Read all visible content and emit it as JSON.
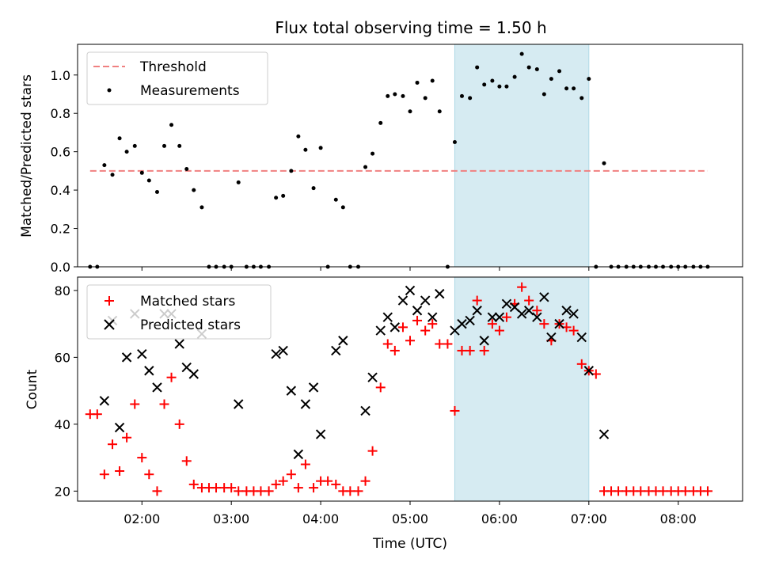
{
  "title": "Flux total observing time = 1.50 h",
  "colors": {
    "threshold": "#f08080",
    "measurement": "#000000",
    "matched": "#ff0000",
    "predicted": "#000000",
    "shade": "#add8e6"
  },
  "chart_data": [
    {
      "type": "scatter",
      "ylabel": "Matched/Predicted stars",
      "ylim": [
        0,
        1.16
      ],
      "yticks": [
        "0.0",
        "0.2",
        "0.4",
        "0.6",
        "0.8",
        "1.0"
      ],
      "xlim_hours": [
        1.28,
        8.72
      ],
      "shaded_span_hours": [
        5.5,
        7.0
      ],
      "legend": {
        "position": "top-left",
        "entries": [
          "Threshold",
          "Measurements"
        ]
      },
      "threshold": {
        "name": "Threshold",
        "value": 0.5,
        "x_range_hours": [
          1.42,
          8.33
        ]
      },
      "series": [
        {
          "name": "Measurements",
          "marker": "dot",
          "x": [
            1.42,
            1.5,
            1.58,
            1.67,
            1.75,
            1.83,
            1.92,
            2.0,
            2.08,
            2.17,
            2.25,
            2.33,
            2.42,
            2.5,
            2.58,
            2.67,
            2.75,
            2.83,
            2.92,
            3.0,
            3.08,
            3.17,
            3.25,
            3.33,
            3.42,
            3.5,
            3.58,
            3.67,
            3.75,
            3.83,
            3.92,
            4.0,
            4.08,
            4.17,
            4.25,
            4.33,
            4.42,
            4.5,
            4.58,
            4.67,
            4.75,
            4.83,
            4.92,
            5.0,
            5.08,
            5.17,
            5.25,
            5.33,
            5.42,
            5.5,
            5.58,
            5.67,
            5.75,
            5.83,
            5.92,
            6.0,
            6.08,
            6.17,
            6.25,
            6.33,
            6.42,
            6.5,
            6.58,
            6.67,
            6.75,
            6.83,
            6.92,
            7.0,
            7.08,
            7.17,
            7.25,
            7.33,
            7.42,
            7.5,
            7.58,
            7.67,
            7.75,
            7.83,
            7.92,
            8.0,
            8.08,
            8.17,
            8.25,
            8.33
          ],
          "y": [
            0,
            0,
            0.53,
            0.48,
            0.67,
            0.6,
            0.63,
            0.49,
            0.45,
            0.39,
            0.63,
            0.74,
            0.63,
            0.51,
            0.4,
            0.31,
            0,
            0,
            0,
            0,
            0.44,
            0,
            0,
            0,
            0,
            0.36,
            0.37,
            0.5,
            0.68,
            0.61,
            0.41,
            0.62,
            0,
            0.35,
            0.31,
            0,
            0,
            0.52,
            0.59,
            0.75,
            0.89,
            0.9,
            0.89,
            0.81,
            0.96,
            0.88,
            0.97,
            0.81,
            0,
            0.65,
            0.89,
            0.88,
            1.04,
            0.95,
            0.97,
            0.94,
            0.94,
            0.99,
            1.11,
            1.04,
            1.03,
            0.9,
            0.98,
            1.02,
            0.93,
            0.93,
            0.88,
            0.98,
            0,
            0.54,
            0,
            0,
            0,
            0,
            0,
            0,
            0,
            0,
            0,
            0,
            0,
            0,
            0,
            0
          ]
        }
      ]
    },
    {
      "type": "scatter",
      "ylabel": "Count",
      "xlabel": "Time (UTC)",
      "ylim": [
        17,
        84
      ],
      "yticks": [
        "20",
        "40",
        "60",
        "80"
      ],
      "xlim_hours": [
        1.28,
        8.72
      ],
      "xticks": [
        "02:00",
        "03:00",
        "04:00",
        "05:00",
        "06:00",
        "07:00",
        "08:00"
      ],
      "shaded_span_hours": [
        5.5,
        7.0
      ],
      "legend": {
        "position": "top-left",
        "entries": [
          "Matched stars",
          "Predicted stars"
        ]
      },
      "series": [
        {
          "name": "Matched stars",
          "marker": "plus",
          "x": [
            1.42,
            1.5,
            1.58,
            1.67,
            1.75,
            1.83,
            1.92,
            2.0,
            2.08,
            2.17,
            2.25,
            2.33,
            2.42,
            2.5,
            2.58,
            2.67,
            2.75,
            2.83,
            2.92,
            3.0,
            3.08,
            3.17,
            3.25,
            3.33,
            3.42,
            3.5,
            3.58,
            3.67,
            3.75,
            3.83,
            3.92,
            4.0,
            4.08,
            4.17,
            4.25,
            4.33,
            4.42,
            4.5,
            4.58,
            4.67,
            4.75,
            4.83,
            4.92,
            5.0,
            5.08,
            5.17,
            5.25,
            5.33,
            5.42,
            5.5,
            5.58,
            5.67,
            5.75,
            5.83,
            5.92,
            6.0,
            6.08,
            6.17,
            6.25,
            6.33,
            6.42,
            6.5,
            6.58,
            6.67,
            6.75,
            6.83,
            6.92,
            7.0,
            7.08,
            7.17,
            7.25,
            7.33,
            7.42,
            7.5,
            7.58,
            7.67,
            7.75,
            7.83,
            7.92,
            8.0,
            8.08,
            8.17,
            8.25,
            8.33
          ],
          "y": [
            43,
            43,
            25,
            34,
            26,
            36,
            46,
            30,
            25,
            20,
            46,
            54,
            40,
            29,
            22,
            21,
            21,
            21,
            21,
            21,
            20,
            20,
            20,
            20,
            20,
            22,
            23,
            25,
            21,
            28,
            21,
            23,
            23,
            22,
            20,
            20,
            20,
            23,
            32,
            51,
            64,
            62,
            69,
            65,
            71,
            68,
            70,
            64,
            64,
            44,
            62,
            62,
            77,
            62,
            70,
            68,
            72,
            76,
            81,
            77,
            74,
            70,
            65,
            70,
            69,
            68,
            58,
            56,
            55,
            20,
            20,
            20,
            20,
            20,
            20,
            20,
            20,
            20,
            20,
            20,
            20,
            20,
            20,
            20
          ]
        },
        {
          "name": "Predicted stars",
          "marker": "x",
          "x": [
            1.58,
            1.67,
            1.75,
            1.83,
            1.92,
            2.0,
            2.08,
            2.17,
            2.25,
            2.33,
            2.42,
            2.5,
            2.58,
            2.67,
            3.08,
            3.5,
            3.58,
            3.67,
            3.75,
            3.83,
            3.92,
            4.0,
            4.17,
            4.25,
            4.5,
            4.58,
            4.67,
            4.75,
            4.83,
            4.92,
            5.0,
            5.08,
            5.17,
            5.25,
            5.33,
            5.5,
            5.58,
            5.67,
            5.75,
            5.83,
            5.92,
            6.0,
            6.08,
            6.17,
            6.25,
            6.33,
            6.42,
            6.5,
            6.58,
            6.67,
            6.75,
            6.83,
            6.92,
            7.0,
            7.17
          ],
          "y": [
            47,
            71,
            39,
            60,
            73,
            61,
            56,
            51,
            73,
            73,
            64,
            57,
            55,
            67,
            46,
            61,
            62,
            50,
            31,
            46,
            51,
            37,
            62,
            65,
            44,
            54,
            68,
            72,
            69,
            77,
            80,
            74,
            77,
            72,
            79,
            68,
            70,
            71,
            74,
            65,
            72,
            72,
            76,
            75,
            73,
            74,
            72,
            78,
            66,
            70,
            74,
            73,
            66,
            56,
            37
          ]
        }
      ]
    }
  ]
}
